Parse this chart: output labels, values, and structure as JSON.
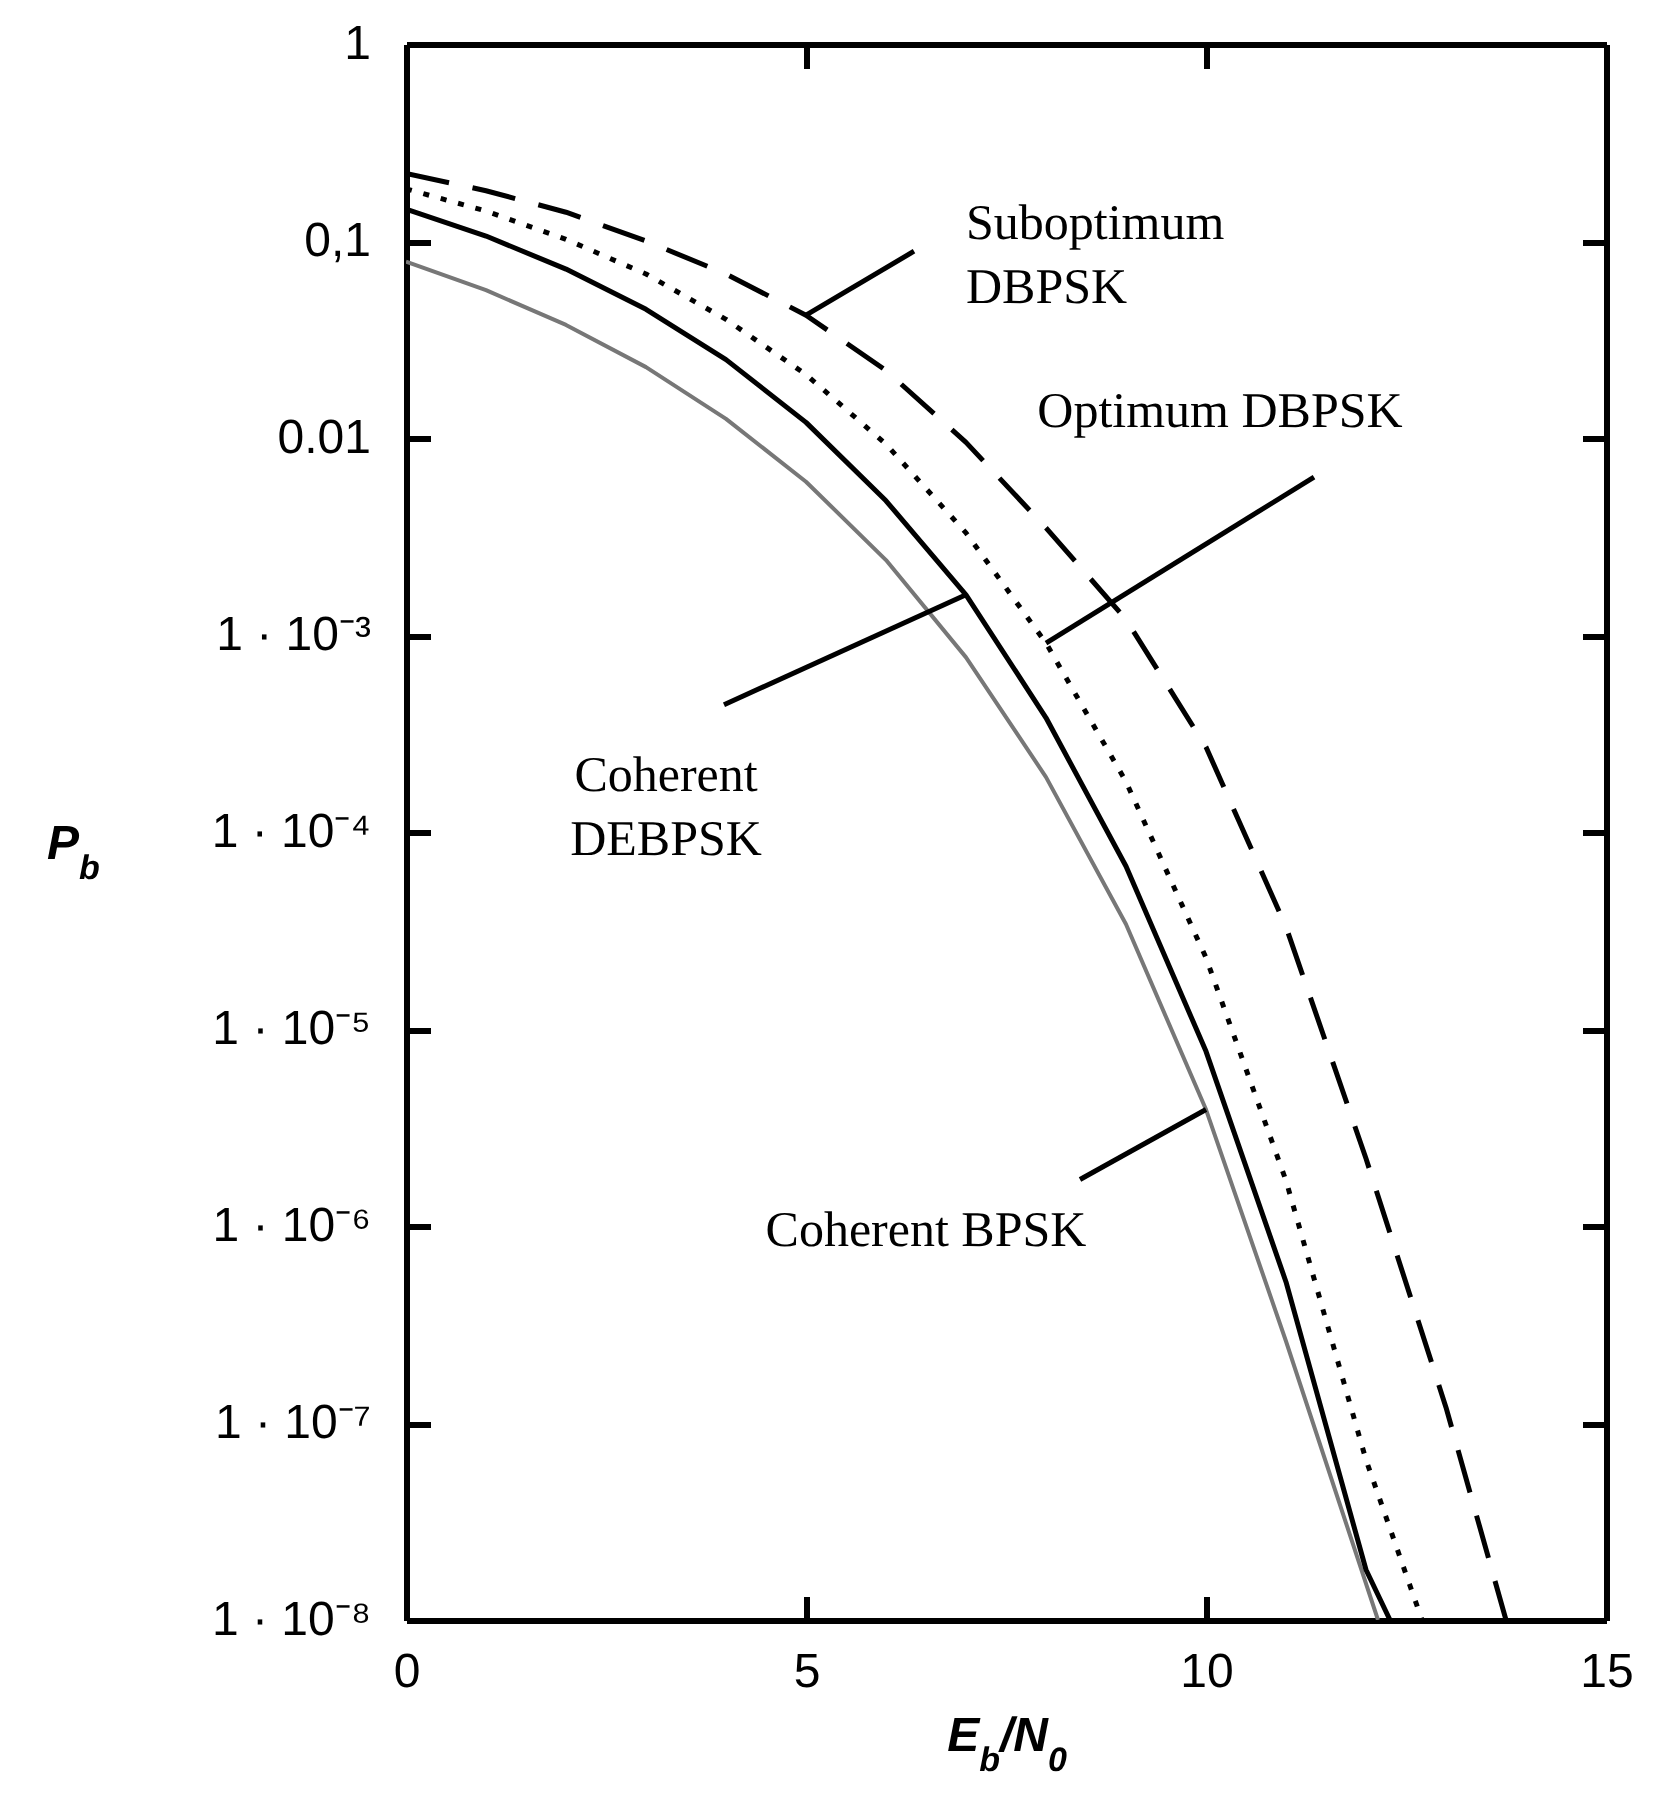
{
  "chart_data": {
    "type": "line",
    "xlabel": "E$_{b}$/N$_{0}$",
    "ylabel": "P$_{b}$",
    "log": "y",
    "grid": false,
    "marker": "none",
    "xlim": [
      0,
      15
    ],
    "xticks": [
      0,
      5,
      10,
      15
    ],
    "ylim": [
      1e-08,
      1
    ],
    "yticks": [
      1,
      {
        "value": 0.1,
        "label": "0,1"
      },
      0.01,
      {
        "value": 0.001,
        "label": "1 · 10⁻³"
      },
      {
        "value": 0.0001,
        "label": "1 · 10⁻⁴"
      },
      {
        "value": 1e-05,
        "label": "1 · 10⁻⁵"
      },
      {
        "value": 1e-06,
        "label": "1 · 10⁻⁶"
      },
      {
        "value": 1e-07,
        "label": "1 · 10⁻⁷"
      },
      {
        "value": 1e-08,
        "label": "1 · 10⁻⁸"
      }
    ],
    "series": [
      {
        "color": "#777777",
        "line_style": "solid",
        "x": [
          0,
          1,
          2,
          3,
          4,
          5,
          6,
          7,
          8,
          9,
          10,
          11,
          12.15
        ],
        "values": [
          0.0786,
          0.0563,
          0.0375,
          0.0229,
          0.0125,
          0.006,
          0.0024,
          0.00077,
          0.00019,
          3.4e-05,
          3.9e-06,
          2.6e-07,
          1e-08
        ]
      },
      {
        "color": "#000000",
        "line_style": "solid",
        "x": [
          0,
          1,
          2,
          3,
          4,
          5,
          6,
          7,
          8,
          9,
          10,
          11,
          12,
          12.3
        ],
        "values": [
          0.145,
          0.106,
          0.072,
          0.045,
          0.025,
          0.012,
          0.0048,
          0.0016,
          0.00038,
          6.7e-05,
          7.7e-06,
          5.2e-07,
          1.8e-08,
          1e-08
        ]
      },
      {
        "color": "#000000",
        "line_style": "dotted",
        "x": [
          0,
          1,
          2,
          3,
          4,
          5,
          6,
          7,
          8,
          9,
          10,
          11,
          12,
          12.7
        ],
        "values": [
          0.184,
          0.142,
          0.102,
          0.068,
          0.04,
          0.021,
          0.0093,
          0.0033,
          0.00091,
          0.00018,
          2.3e-05,
          1.7e-06,
          6.5e-08,
          1e-08
        ]
      },
      {
        "color": "#000000",
        "line_style": "dashed",
        "x": [
          0,
          1,
          2,
          3,
          4,
          5,
          6,
          7,
          8,
          9,
          10,
          11,
          12,
          13,
          13.75
        ],
        "values": [
          0.22,
          0.18,
          0.14,
          0.1,
          0.068,
          0.042,
          0.022,
          0.0095,
          0.0035,
          0.0012,
          0.00027,
          3.3e-05,
          2.2e-06,
          1.2e-07,
          1e-08
        ]
      }
    ],
    "annotations": [
      {
        "text": "Suboptimum\nDBPSK",
        "x": 5,
        "y": 0.042
      },
      {
        "text": "Optimum DBPSK",
        "x": 8,
        "y": 0.00091
      },
      {
        "text": "Coherent\nDEBPSK",
        "x": 7,
        "y": 0.0016
      },
      {
        "text": "Coherent BPSK",
        "x": 10,
        "y": 3.9e-06
      }
    ]
  }
}
